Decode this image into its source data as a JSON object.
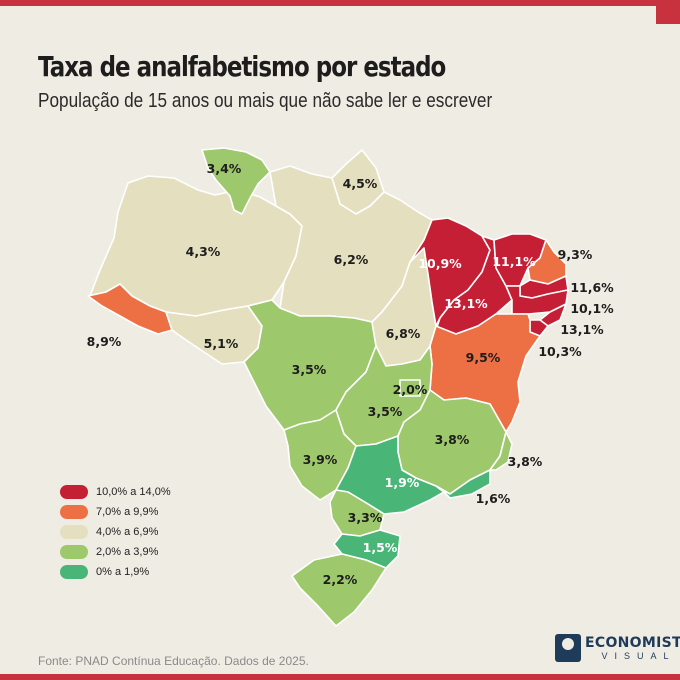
{
  "title": "Taxa de analfabetismo por estado",
  "subtitle": "População de 15 anos ou mais que não sabe ler e escrever",
  "colors": {
    "class_10_14": "#c41f35",
    "class_7_9": "#ec7043",
    "class_4_6": "#e4dfbf",
    "class_2_3": "#9ec86c",
    "class_0_1": "#49b678"
  },
  "legend": [
    {
      "label": "10,0% a 14,0%",
      "color_key": "class_10_14"
    },
    {
      "label": "7,0% a 9,9%",
      "color_key": "class_7_9"
    },
    {
      "label": "4,0% a 6,9%",
      "color_key": "class_4_6"
    },
    {
      "label": "2,0% a 3,9%",
      "color_key": "class_2_3"
    },
    {
      "label": "0% a 1,9%",
      "color_key": "class_0_1"
    }
  ],
  "states": {
    "rr": {
      "value": "3,4%",
      "color_key": "class_2_3"
    },
    "ap": {
      "value": "4,5%",
      "color_key": "class_4_6"
    },
    "am": {
      "value": "4,3%",
      "color_key": "class_4_6"
    },
    "pa": {
      "value": "6,2%",
      "color_key": "class_4_6"
    },
    "ac": {
      "value": "8,9%",
      "color_key": "class_7_9"
    },
    "ro": {
      "value": "5,1%",
      "color_key": "class_4_6"
    },
    "mt": {
      "value": "3,5%",
      "color_key": "class_2_3"
    },
    "to": {
      "value": "6,8%",
      "color_key": "class_4_6"
    },
    "ma": {
      "value": "10,9%",
      "color_key": "class_10_14"
    },
    "pi": {
      "value": "13,1%",
      "color_key": "class_10_14"
    },
    "ce": {
      "value": "11,1%",
      "color_key": "class_10_14"
    },
    "rn": {
      "value": "9,3%",
      "color_key": "class_7_9"
    },
    "pb": {
      "value": "11,6%",
      "color_key": "class_10_14"
    },
    "pe": {
      "value": "10,1%",
      "color_key": "class_10_14"
    },
    "al": {
      "value": "13,1%",
      "color_key": "class_10_14"
    },
    "se": {
      "value": "10,3%",
      "color_key": "class_10_14"
    },
    "ba": {
      "value": "9,5%",
      "color_key": "class_7_9"
    },
    "df": {
      "value": "2,0%",
      "color_key": "class_2_3"
    },
    "go": {
      "value": "3,5%",
      "color_key": "class_2_3"
    },
    "mg": {
      "value": "3,8%",
      "color_key": "class_2_3"
    },
    "es": {
      "value": "3,8%",
      "color_key": "class_2_3"
    },
    "ms": {
      "value": "3,9%",
      "color_key": "class_2_3"
    },
    "sp": {
      "value": "1,9%",
      "color_key": "class_0_1"
    },
    "rj": {
      "value": "1,6%",
      "color_key": "class_0_1"
    },
    "pr": {
      "value": "3,3%",
      "color_key": "class_2_3"
    },
    "sc": {
      "value": "1,5%",
      "color_key": "class_0_1"
    },
    "rs": {
      "value": "2,2%",
      "color_key": "class_2_3"
    }
  },
  "source": "Fonte: PNAD Contínua Educação. Dados de 2025.",
  "logo": {
    "name": "ECONOMISTA",
    "sub": "VISUAL"
  }
}
